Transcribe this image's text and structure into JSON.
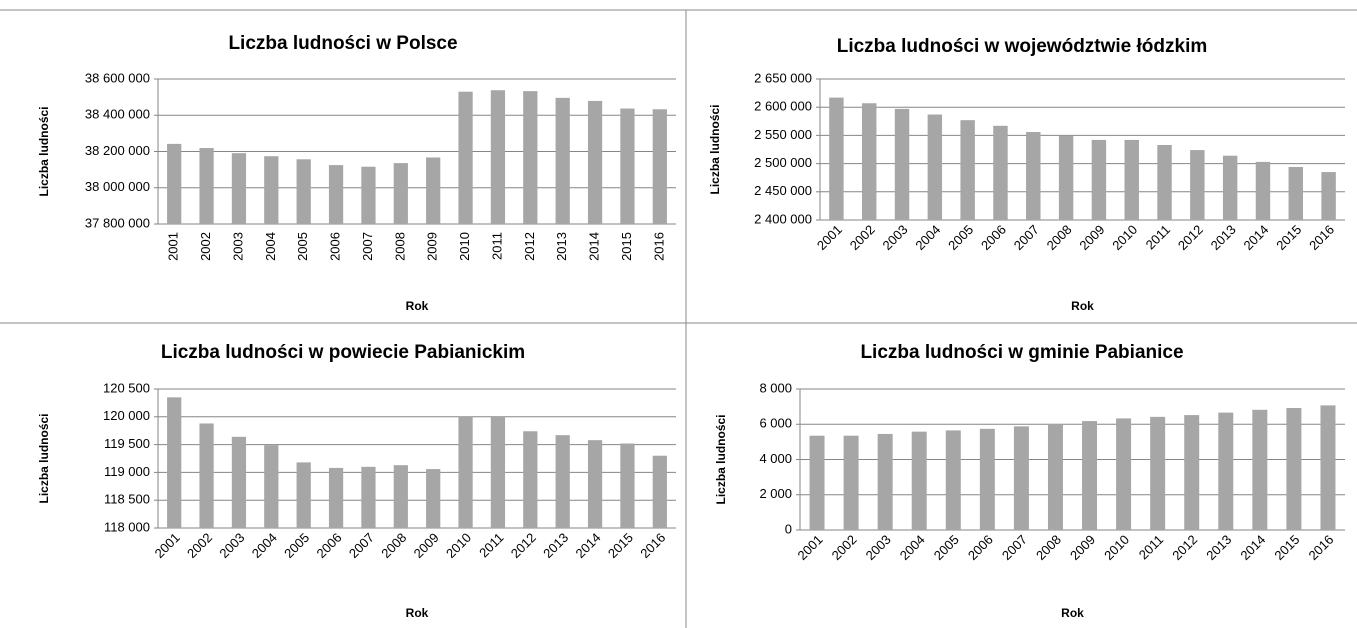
{
  "chart_data": [
    {
      "type": "bar",
      "title": "Liczba ludności w Polsce",
      "xlabel": "Rok",
      "ylabel": "Liczba  ludności",
      "categories": [
        "2001",
        "2002",
        "2003",
        "2004",
        "2005",
        "2006",
        "2007",
        "2008",
        "2009",
        "2010",
        "2011",
        "2012",
        "2013",
        "2014",
        "2015",
        "2016"
      ],
      "values": [
        38242000,
        38219000,
        38191000,
        38174000,
        38157000,
        38125000,
        38116000,
        38136000,
        38167000,
        38530000,
        38538000,
        38533000,
        38496000,
        38479000,
        38437000,
        38433000
      ],
      "color": "#a6a6a6",
      "ylim": [
        37800000,
        38600000
      ],
      "yticks": [
        {
          "value": 37800000,
          "label": "37 800 000"
        },
        {
          "value": 38000000,
          "label": "38 000 000"
        },
        {
          "value": 38200000,
          "label": "38 200 000"
        },
        {
          "value": 38400000,
          "label": "38 400 000"
        },
        {
          "value": 38600000,
          "label": "38 600 000"
        }
      ],
      "grid": true
    },
    {
      "type": "bar",
      "title": "Liczba ludności w województwie łódzkim",
      "xlabel": "Rok",
      "ylabel": "Liczba  ludności",
      "categories": [
        "2001",
        "2002",
        "2003",
        "2004",
        "2005",
        "2006",
        "2007",
        "2008",
        "2009",
        "2010",
        "2011",
        "2012",
        "2013",
        "2014",
        "2015",
        "2016"
      ],
      "values": [
        2617000,
        2607000,
        2597000,
        2587000,
        2577000,
        2567000,
        2556000,
        2549000,
        2542000,
        2542000,
        2533000,
        2524000,
        2514000,
        2503000,
        2494000,
        2485000
      ],
      "color": "#a6a6a6",
      "ylim": [
        2400000,
        2650000
      ],
      "yticks": [
        {
          "value": 2400000,
          "label": "2 400 000"
        },
        {
          "value": 2450000,
          "label": "2 450 000"
        },
        {
          "value": 2500000,
          "label": "2 500 000"
        },
        {
          "value": 2550000,
          "label": "2 550 000"
        },
        {
          "value": 2600000,
          "label": "2 600 000"
        },
        {
          "value": 2650000,
          "label": "2 650 000"
        }
      ],
      "grid": true
    },
    {
      "type": "bar",
      "title": "Liczba ludności w powiecie Pabianickim",
      "xlabel": "Rok",
      "ylabel": "Liczba  ludności",
      "categories": [
        "2001",
        "2002",
        "2003",
        "2004",
        "2005",
        "2006",
        "2007",
        "2008",
        "2009",
        "2010",
        "2011",
        "2012",
        "2013",
        "2014",
        "2015",
        "2016"
      ],
      "values": [
        120350,
        119880,
        119640,
        119490,
        119180,
        119080,
        119100,
        119130,
        119060,
        120010,
        120000,
        119740,
        119670,
        119580,
        119520,
        119300
      ],
      "color": "#a6a6a6",
      "ylim": [
        118000,
        120500
      ],
      "yticks": [
        {
          "value": 118000,
          "label": "118 000"
        },
        {
          "value": 118500,
          "label": "118 500"
        },
        {
          "value": 119000,
          "label": "119 000"
        },
        {
          "value": 119500,
          "label": "119 500"
        },
        {
          "value": 120000,
          "label": "120 000"
        },
        {
          "value": 120500,
          "label": "120 500"
        }
      ],
      "grid": true
    },
    {
      "type": "bar",
      "title": "Liczba ludności w gminie Pabianice",
      "xlabel": "Rok",
      "ylabel": "Liczba  ludności",
      "categories": [
        "2001",
        "2002",
        "2003",
        "2004",
        "2005",
        "2006",
        "2007",
        "2008",
        "2009",
        "2010",
        "2011",
        "2012",
        "2013",
        "2014",
        "2015",
        "2016"
      ],
      "values": [
        5350,
        5350,
        5450,
        5580,
        5650,
        5740,
        5880,
        6010,
        6180,
        6330,
        6420,
        6520,
        6660,
        6820,
        6920,
        7070
      ],
      "color": "#a6a6a6",
      "ylim": [
        0,
        8000
      ],
      "yticks": [
        0,
        {
          "value": 2000,
          "label": "2 000"
        },
        {
          "value": 4000,
          "label": "4 000"
        },
        {
          "value": 6000,
          "label": "6 000"
        },
        {
          "value": 8000,
          "label": "8 000"
        }
      ],
      "grid": true
    }
  ]
}
